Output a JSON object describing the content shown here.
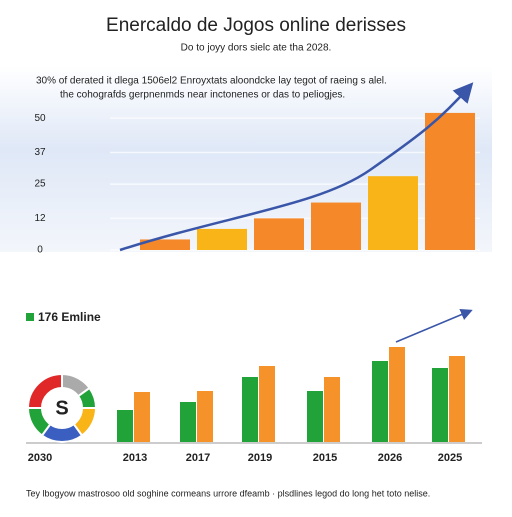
{
  "chart_data": [
    {
      "type": "bar",
      "title": "Enercaldo de Jogos online derisses",
      "subtitle": "Do to joyy dors sielc ate tha 2028.",
      "annotations": [
        "30% of derated it dlega 1506el2 Enroyxtats aloondcke lay tegot of raeing s alel.",
        "the cohografds gerpnenmds near inctonenes or das to peliogjes."
      ],
      "categories": [
        null,
        null,
        null,
        null,
        null,
        null
      ],
      "values": [
        4,
        8,
        12,
        18,
        28,
        52
      ],
      "colors": [
        "#f5892a",
        "#f9b417",
        "#f5892a",
        "#f5892a",
        "#f9b417",
        "#f5892a"
      ],
      "ylim": [
        0,
        55
      ],
      "yticks": [
        50,
        37,
        25,
        12,
        0
      ]
    },
    {
      "type": "grouped-bar",
      "title": "176 Emline",
      "categories": [
        "2013",
        "2017",
        "2019",
        "2015",
        "2026",
        "2025"
      ],
      "series": [
        {
          "color": "#22a33a",
          "values": [
            32,
            40,
            65,
            51,
            81,
            74
          ]
        },
        {
          "color": "#f5922a",
          "values": [
            50,
            51,
            76,
            65,
            95,
            86
          ]
        }
      ],
      "ylim": [
        0,
        100
      ],
      "footer": "Tey lbogyow mastrosoo old soghine cormeans urrore dfeamb · plsdlines legod do long het toto nelise."
    },
    {
      "type": "pie",
      "center_label": "S",
      "caption": "2030",
      "categories": [
        null,
        null,
        null,
        null,
        null,
        null
      ],
      "values": [
        15,
        10,
        15,
        20,
        15,
        25
      ],
      "colors": [
        "#aaaaaa",
        "#22a33a",
        "#f9b417",
        "#3a5fc0",
        "#22a33a",
        "#e02828"
      ]
    }
  ]
}
